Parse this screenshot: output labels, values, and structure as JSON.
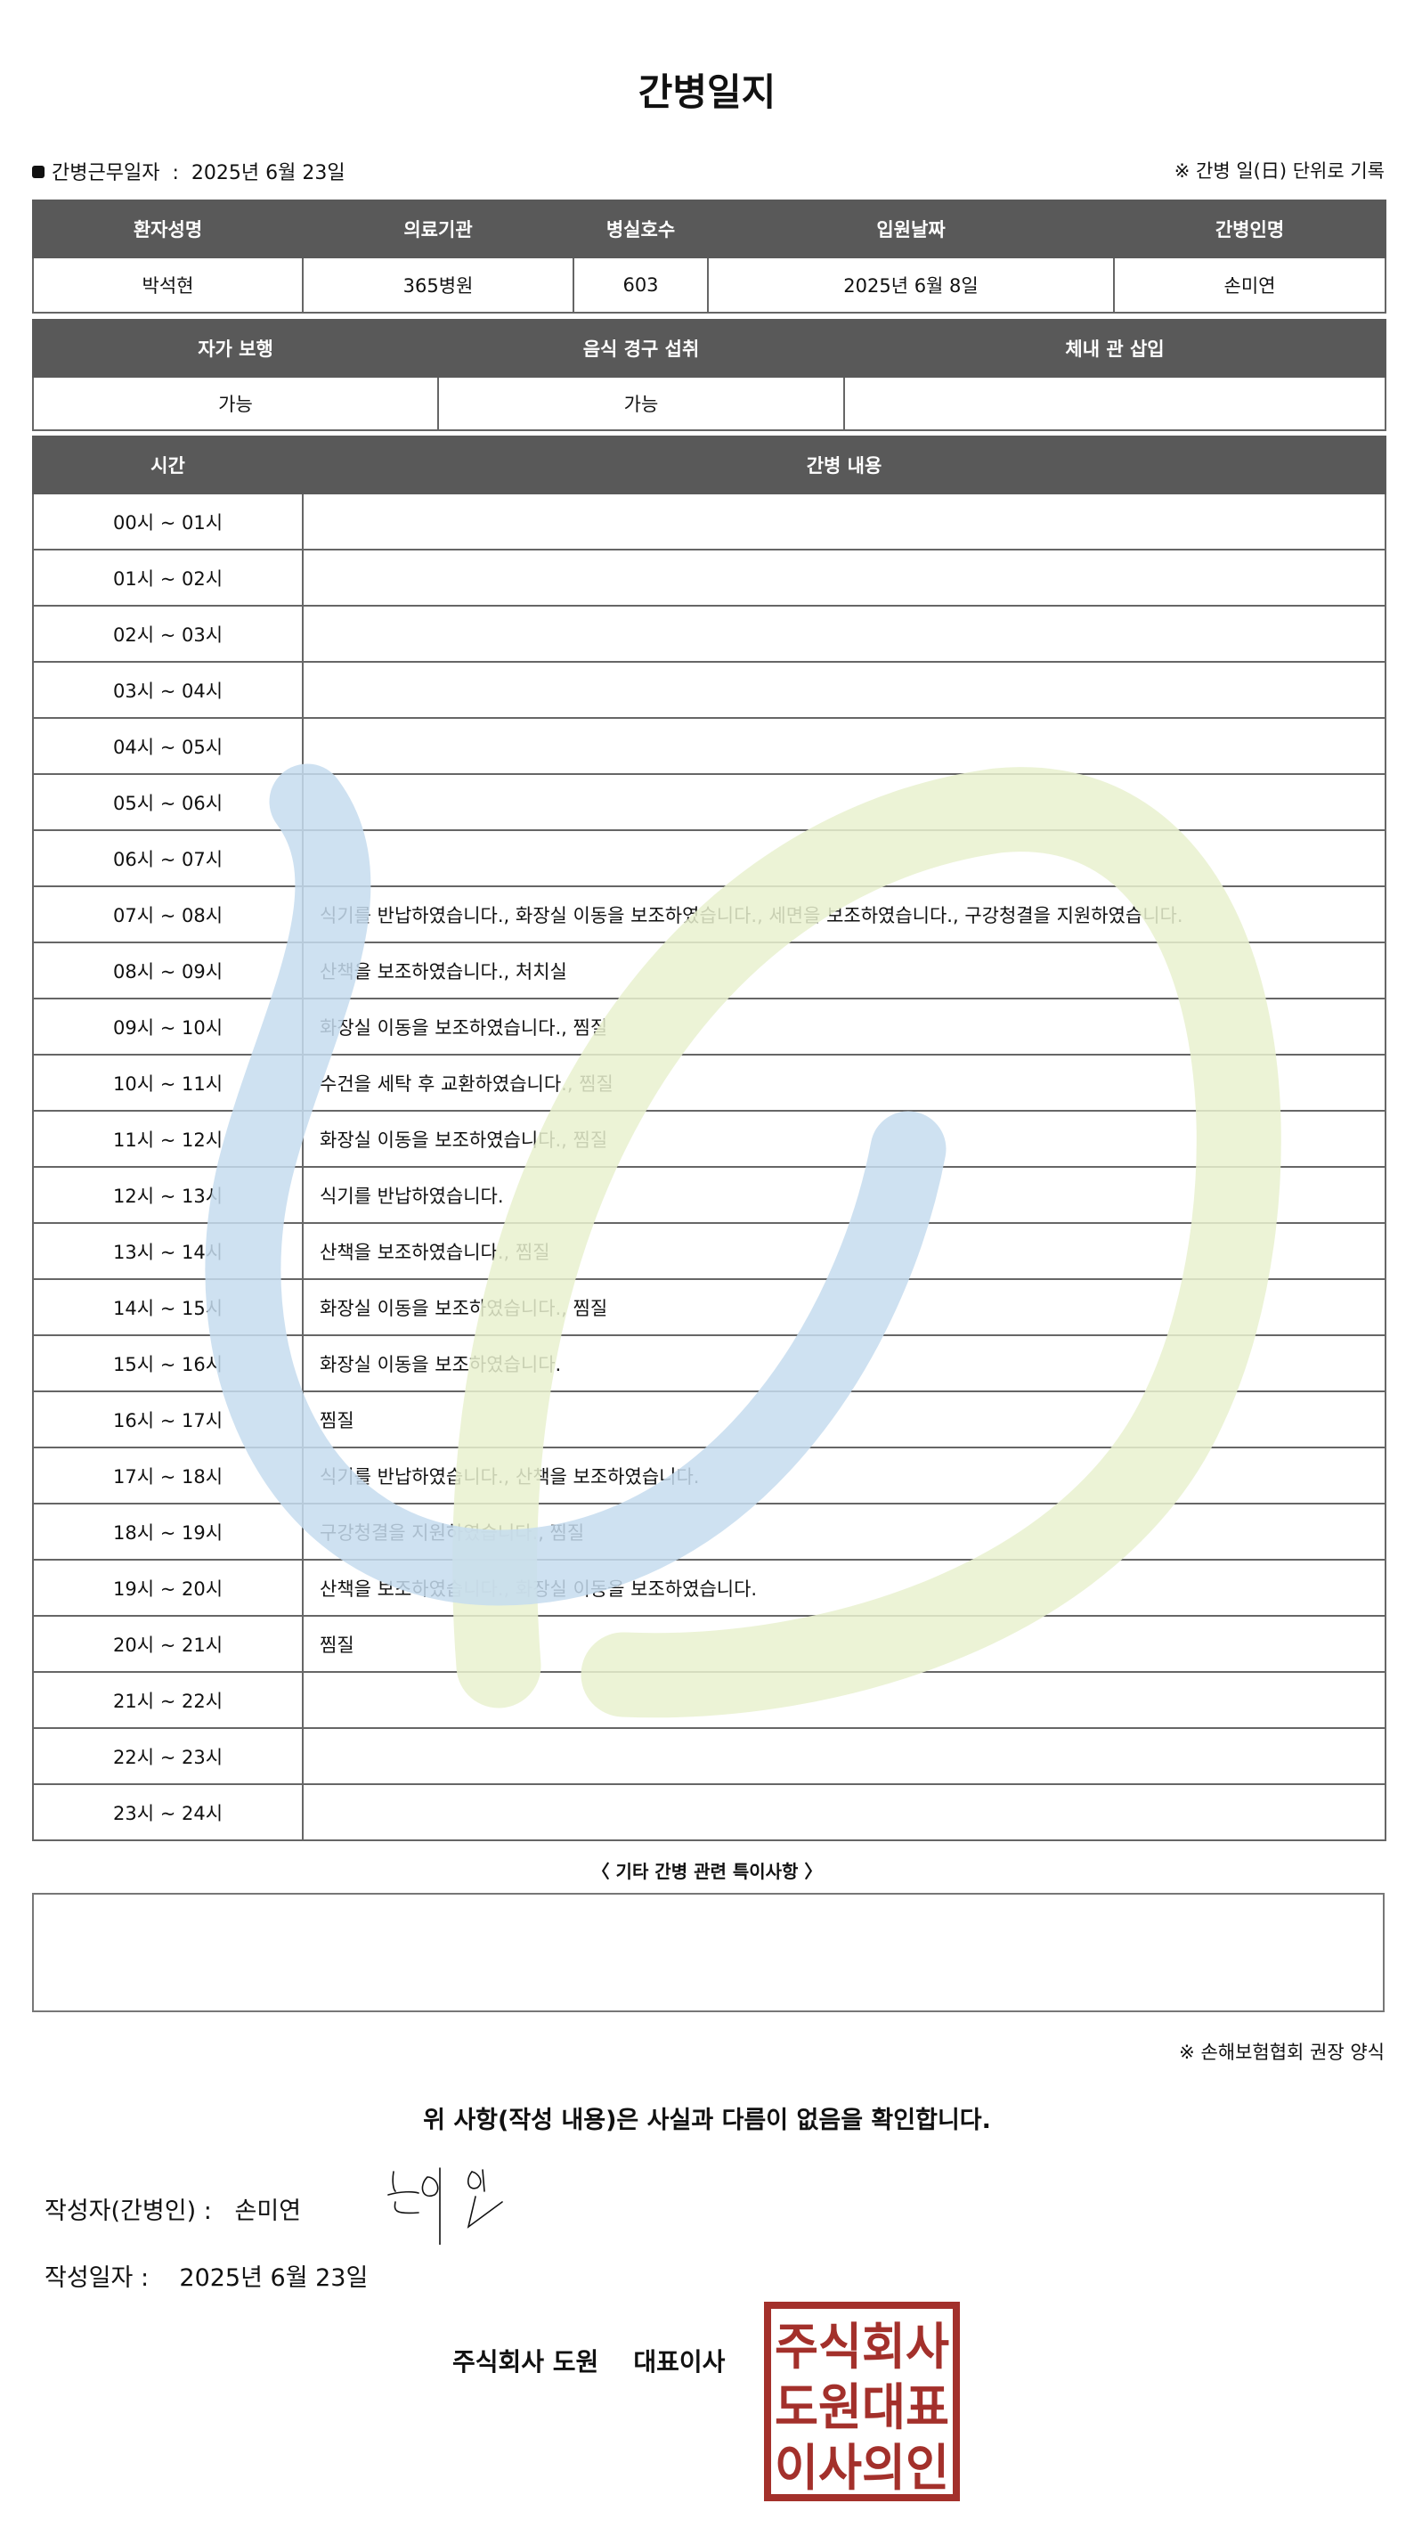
{
  "title": "간병일지",
  "work_date_label": "간병근무일자",
  "work_date_sep": ":",
  "work_date": "2025년 6월 23일",
  "record_note": "※ 간병 일(日) 단위로 기록",
  "patient_table": {
    "headers": [
      "환자성명",
      "의료기관",
      "병실호수",
      "입원날짜",
      "간병인명"
    ],
    "values": [
      "박석현",
      "365병원",
      "603",
      "2025년 6월 8일",
      "손미연"
    ]
  },
  "status_table": {
    "headers": [
      "자가 보행",
      "음식 경구 섭취",
      "체내 관 삽입"
    ],
    "values": [
      "가능",
      "가능",
      ""
    ]
  },
  "log_table": {
    "headers": [
      "시간",
      "간병 내용"
    ],
    "rows": [
      {
        "time": "00시 ~ 01시",
        "content": ""
      },
      {
        "time": "01시 ~ 02시",
        "content": ""
      },
      {
        "time": "02시 ~ 03시",
        "content": ""
      },
      {
        "time": "03시 ~ 04시",
        "content": ""
      },
      {
        "time": "04시 ~ 05시",
        "content": ""
      },
      {
        "time": "05시 ~ 06시",
        "content": ""
      },
      {
        "time": "06시 ~ 07시",
        "content": ""
      },
      {
        "time": "07시 ~ 08시",
        "content": "식기를 반납하였습니다., 화장실 이동을 보조하였습니다., 세면을 보조하였습니다., 구강청결을 지원하였습니다."
      },
      {
        "time": "08시 ~ 09시",
        "content": "산책을 보조하였습니다., 처치실"
      },
      {
        "time": "09시 ~ 10시",
        "content": "화장실 이동을 보조하였습니다., 찜질"
      },
      {
        "time": "10시 ~ 11시",
        "content": "수건을 세탁 후 교환하였습니다., 찜질"
      },
      {
        "time": "11시 ~ 12시",
        "content": "화장실 이동을 보조하였습니다., 찜질"
      },
      {
        "time": "12시 ~ 13시",
        "content": "식기를 반납하였습니다."
      },
      {
        "time": "13시 ~ 14시",
        "content": "산책을 보조하였습니다., 찜질"
      },
      {
        "time": "14시 ~ 15시",
        "content": "화장실 이동을 보조하였습니다., 찜질"
      },
      {
        "time": "15시 ~ 16시",
        "content": "화장실 이동을 보조하였습니다."
      },
      {
        "time": "16시 ~ 17시",
        "content": "찜질"
      },
      {
        "time": "17시 ~ 18시",
        "content": "식기를 반납하였습니다., 산책을 보조하였습니다."
      },
      {
        "time": "18시 ~ 19시",
        "content": "구강청결을 지원하였습니다., 찜질"
      },
      {
        "time": "19시 ~ 20시",
        "content": "산책을 보조하였습니다., 화장실 이동을 보조하였습니다."
      },
      {
        "time": "20시 ~ 21시",
        "content": "찜질"
      },
      {
        "time": "21시 ~ 22시",
        "content": ""
      },
      {
        "time": "22시 ~ 23시",
        "content": ""
      },
      {
        "time": "23시 ~ 24시",
        "content": ""
      }
    ]
  },
  "special_notes_label": "〈 기타 간병 관련 특이사항 〉",
  "special_notes": "",
  "form_note": "※ 손해보험협회 권장 양식",
  "confirmation": "위 사항(작성 내용)은 사실과 다름이 없음을 확인합니다.",
  "writer_label": "작성자(간병인) :",
  "writer_name": "손미연",
  "signature": "손미연",
  "written_date_label": "작성일자 :",
  "written_date": "2025년 6월 23일",
  "company": "주식회사 도원",
  "ceo_label": "대표이사",
  "seal_text": [
    "주식회사",
    "도원대표",
    "이사의인"
  ],
  "colors": {
    "header_bg": "#595959",
    "seal": "#a3302b",
    "watermark_blue": "#c5dcef",
    "watermark_green": "#e9f1cf"
  }
}
